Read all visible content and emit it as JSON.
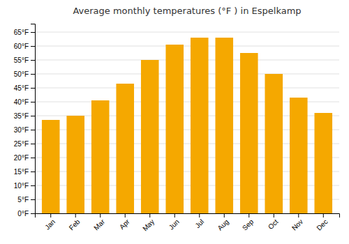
{
  "chart_data": {
    "type": "bar",
    "title": "Average monthly temperatures (°F ) in Espelkamp",
    "categories": [
      "Jan",
      "Feb",
      "Mar",
      "Apr",
      "May",
      "Jun",
      "Jul",
      "Aug",
      "Sep",
      "Oct",
      "Nov",
      "Dec"
    ],
    "values": [
      33.5,
      35.0,
      40.5,
      46.5,
      55.0,
      60.5,
      63.0,
      63.0,
      57.5,
      50.0,
      41.5,
      36.0
    ],
    "color": "#F5A800",
    "ylim": [
      0,
      68
    ],
    "yticks": [
      {
        "value": 0,
        "label": "0°F"
      },
      {
        "value": 5,
        "label": "5°F"
      },
      {
        "value": 10,
        "label": "10°F"
      },
      {
        "value": 15,
        "label": "15°F"
      },
      {
        "value": 20,
        "label": "20°F"
      },
      {
        "value": 25,
        "label": "25°F"
      },
      {
        "value": 30,
        "label": "30°F"
      },
      {
        "value": 35,
        "label": "35°F"
      },
      {
        "value": 40,
        "label": "40°F"
      },
      {
        "value": 45,
        "label": "45°F"
      },
      {
        "value": 50,
        "label": "50°F"
      },
      {
        "value": 55,
        "label": "55°F"
      },
      {
        "value": 60,
        "label": "60°F"
      },
      {
        "value": 65,
        "label": "65°F"
      }
    ],
    "grid": true
  }
}
